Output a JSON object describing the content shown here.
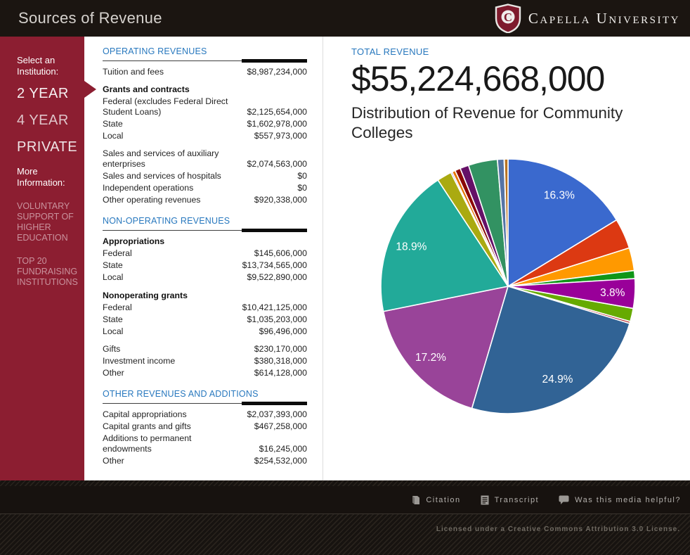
{
  "header": {
    "title": "Sources of Revenue",
    "logo_text": "Capella University"
  },
  "sidebar": {
    "select_label": "Select an Institution:",
    "institutions": [
      {
        "label": "2 YEAR",
        "selected": true
      },
      {
        "label": "4 YEAR",
        "selected": false
      },
      {
        "label": "PRIVATE",
        "selected": false
      }
    ],
    "more_label": "More Information:",
    "links": [
      {
        "label": "VOLUNTARY SUPPORT OF HIGHER EDUCATION"
      },
      {
        "label": "TOP 20 FUNDRAISING INSTITUTIONS"
      }
    ]
  },
  "table": {
    "sections": [
      {
        "title": "OPERATING REVENUES",
        "rows": [
          {
            "label": "Tuition and fees",
            "value": "$8,987,234,000"
          },
          {
            "label": "Grants and contracts",
            "header": true,
            "gap": true
          },
          {
            "label": "Federal (excludes Federal Direct Student Loans)",
            "value": "$2,125,654,000"
          },
          {
            "label": "State",
            "value": "$1,602,978,000"
          },
          {
            "label": "Local",
            "value": "$557,973,000"
          },
          {
            "label": "Sales and services of auxiliary enterprises",
            "value": "$2,074,563,000",
            "gap": true
          },
          {
            "label": "Sales and services of hospitals",
            "value": "$0"
          },
          {
            "label": "Independent operations",
            "value": "$0"
          },
          {
            "label": "Other operating revenues",
            "value": "$920,338,000"
          }
        ]
      },
      {
        "title": "NON-OPERATING REVENUES",
        "rows": [
          {
            "label": "Appropriations",
            "header": true
          },
          {
            "label": "Federal",
            "value": "$145,606,000"
          },
          {
            "label": "State",
            "value": "$13,734,565,000"
          },
          {
            "label": "Local",
            "value": "$9,522,890,000"
          },
          {
            "label": "Nonoperating grants",
            "header": true,
            "gap": true
          },
          {
            "label": "Federal",
            "value": "$10,421,125,000"
          },
          {
            "label": "State",
            "value": "$1,035,203,000"
          },
          {
            "label": "Local",
            "value": "$96,496,000"
          },
          {
            "label": "Gifts",
            "value": "$230,170,000",
            "gap": true
          },
          {
            "label": "Investment income",
            "value": "$380,318,000"
          },
          {
            "label": "Other",
            "value": "$614,128,000"
          }
        ]
      },
      {
        "title": "OTHER REVENUES AND ADDITIONS",
        "rows": [
          {
            "label": "Capital appropriations",
            "value": "$2,037,393,000"
          },
          {
            "label": "Capital grants and gifts",
            "value": "$467,258,000"
          },
          {
            "label": "Additions to permanent endowments",
            "value": "$16,245,000"
          },
          {
            "label": "Other",
            "value": "$254,532,000"
          }
        ]
      }
    ]
  },
  "main": {
    "total_label": "TOTAL REVENUE",
    "total_value": "$55,224,668,000",
    "chart_title": "Distribution of Revenue for Community Colleges"
  },
  "chart_data": {
    "type": "pie",
    "title": "Distribution of Revenue for Community Colleges",
    "total": 55224668000,
    "unit": "USD",
    "start_angle_deg": 0,
    "direction": "clockwise",
    "labels_shown": [
      "16.3%",
      "3.8%",
      "24.9%",
      "17.2%",
      "18.9%"
    ],
    "slices": [
      {
        "label": "Tuition and fees",
        "value": 8987234000,
        "pct_label": "16.3%",
        "color": "#3A69CE"
      },
      {
        "label": "Grants and contracts - Federal (excludes Federal Direct Student Loans)",
        "value": 2125654000,
        "color": "#DC3912"
      },
      {
        "label": "Grants and contracts - State",
        "value": 1602978000,
        "color": "#FF9900"
      },
      {
        "label": "Grants and contracts - Local",
        "value": 557973000,
        "color": "#109618"
      },
      {
        "label": "Sales and services of auxiliary enterprises",
        "value": 2074563000,
        "pct_label": "3.8%",
        "color": "#990099"
      },
      {
        "label": "Sales and services of hospitals",
        "value": 0,
        "color": "#0099C6"
      },
      {
        "label": "Independent operations",
        "value": 0,
        "color": "#DD4477"
      },
      {
        "label": "Other operating revenues",
        "value": 920338000,
        "color": "#66AA00"
      },
      {
        "label": "Appropriations - Federal",
        "value": 145606000,
        "color": "#B82E2E"
      },
      {
        "label": "Appropriations - State",
        "value": 13734565000,
        "pct_label": "24.9%",
        "color": "#316395"
      },
      {
        "label": "Appropriations - Local",
        "value": 9522890000,
        "pct_label": "17.2%",
        "color": "#994499"
      },
      {
        "label": "Nonoperating grants - Federal",
        "value": 10421125000,
        "pct_label": "18.9%",
        "color": "#22AA99"
      },
      {
        "label": "Nonoperating grants - State",
        "value": 1035203000,
        "color": "#AAAA11"
      },
      {
        "label": "Nonoperating grants - Local",
        "value": 96496000,
        "color": "#6633CC"
      },
      {
        "label": "Gifts",
        "value": 230170000,
        "color": "#E67300"
      },
      {
        "label": "Investment income",
        "value": 380318000,
        "color": "#8B0707"
      },
      {
        "label": "Other nonoperating",
        "value": 614128000,
        "color": "#651067"
      },
      {
        "label": "Capital appropriations",
        "value": 2037393000,
        "color": "#329262"
      },
      {
        "label": "Capital grants and gifts",
        "value": 467258000,
        "color": "#5574A6"
      },
      {
        "label": "Additions to permanent endowments",
        "value": 16245000,
        "color": "#3B3EAC"
      },
      {
        "label": "Other additions",
        "value": 254532000,
        "color": "#B77322"
      }
    ]
  },
  "footer": {
    "buttons": [
      {
        "label": "Citation",
        "icon": "citation-book-icon"
      },
      {
        "label": "Transcript",
        "icon": "transcript-doc-icon"
      },
      {
        "label": "Was this media helpful?",
        "icon": "speech-bubble-icon"
      }
    ],
    "license": "Licensed under a Creative Commons Attribution 3.0 License."
  },
  "colors": {
    "brand_maroon": "#8C1E31",
    "header_bg": "#1B1511",
    "heading_blue": "#2878BE",
    "footer_bg": "#17120F"
  }
}
